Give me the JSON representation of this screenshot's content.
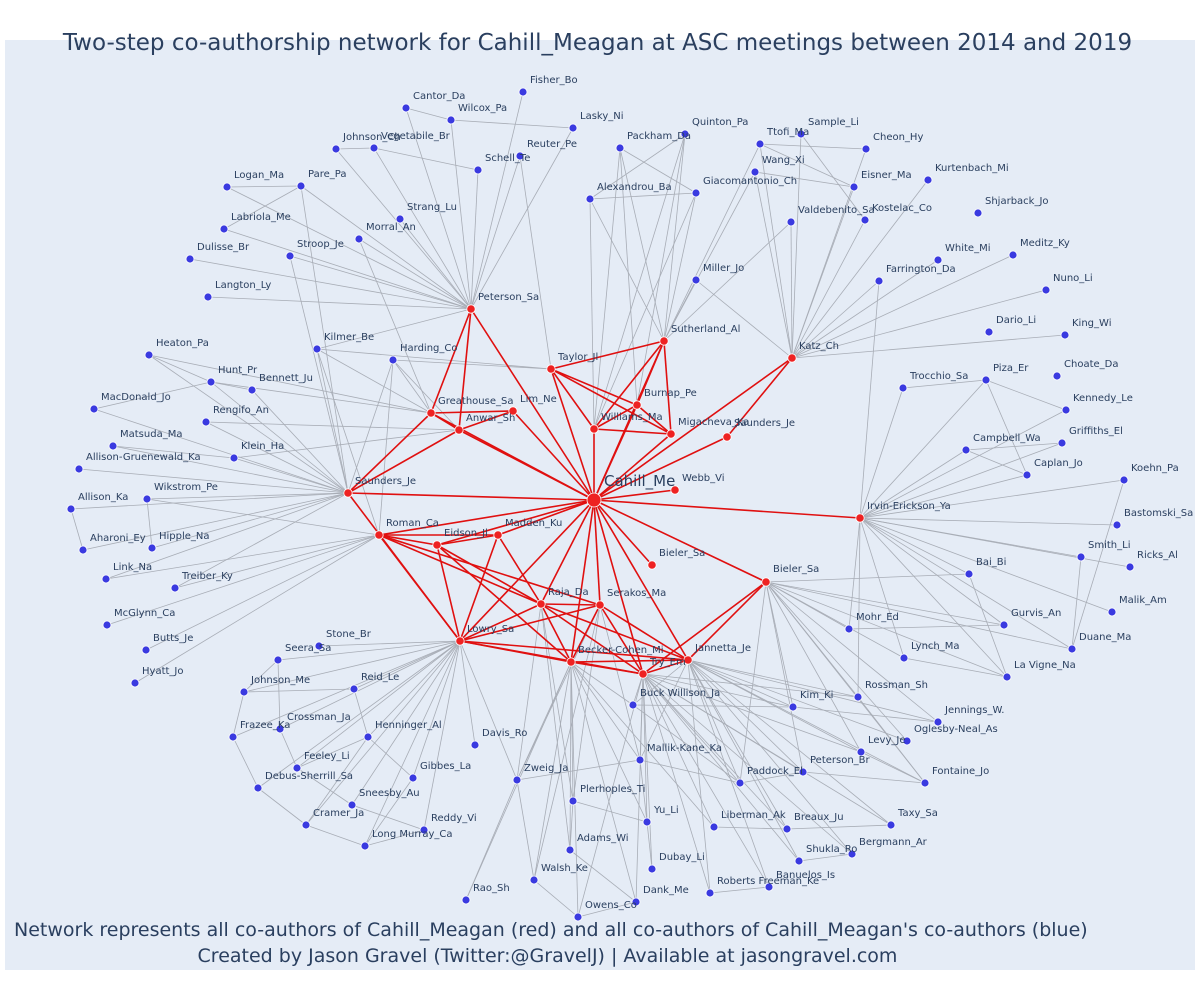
{
  "title": "Two-step co-authorship network for Cahill_Meagan at ASC meetings between 2014 and 2019",
  "caption_line1": "Network represents all co-authors of Cahill_Meagan (red) and all co-authors of Cahill_Meagan's co-authors (blue)",
  "caption_line2": "Created by Jason Gravel (Twitter:@GravelJ) | Available at jasongravel.com",
  "colors": {
    "background": "#e5ecf6",
    "red_node": "#ee2222",
    "blue_node": "#3a3ae0",
    "red_edge": "#e01010",
    "gray_edge": "#a8adb6",
    "text": "#2a3f5f"
  },
  "center": "Cahill_Me",
  "red_nodes": [
    "Peterson_Sa",
    "Sutherland_Al",
    "Katz_Ch",
    "Taylor_Jl",
    "Burnap_Pe",
    "Lim_Ne",
    "Greathouse_Sa",
    "Anwar_Sh",
    "Williams_Ma",
    "Migacheva_Ka",
    "Saunders_Je (2)",
    "Webb_Vi",
    "Saunders_Je",
    "Irvin-Erickson_Ya",
    "Roman_Ca",
    "Eidson_Jl",
    "Madden_Ku",
    "Bieler_Sa",
    "Bieler_Sa (2)",
    "Raja_Da",
    "Serakos_Ma",
    "Lowry_Sa",
    "Becker-Cohen_Mi",
    "Try_Em",
    "Jannetta_Je"
  ],
  "blue_nodes": [
    "Fisher_Bo",
    "Cantor_Da",
    "Wilcox_Pa",
    "Lasky_Ni",
    "Johnson_Ch",
    "Vegetabile_Br",
    "Reuter_Pe",
    "Schell_Te",
    "Logan_Ma",
    "Pare_Pa",
    "Labriola_Me",
    "Dulisse_Br",
    "Strang_Lu",
    "Morral_An",
    "Stroop_Je",
    "Langton_Ly",
    "Quinton_Pa",
    "Packham_Da",
    "Ttofi_Ma",
    "Sample_Li",
    "Cheon_Hy",
    "Wang_Xi",
    "Alexandrou_Ba",
    "Giacomantonio_Ch",
    "Eisner_Ma",
    "Kurtenbach_Mi",
    "Valdebenito_Sa",
    "Kostelac_Co",
    "Shjarback_Jo",
    "White_Mi",
    "Meditz_Ky",
    "Miller_Jo",
    "Farrington_Da",
    "Nuno_Li",
    "Dario_Li",
    "King_Wi",
    "Choate_Da",
    "Heaton_Pa",
    "Kilmer_Be",
    "Harding_Co",
    "Hunt_Pr",
    "Bennett_Ju",
    "MacDonald_Jo",
    "Rengifo_An",
    "Matsuda_Ma",
    "Klein_Ha",
    "Allison-Gruenewald_Ka",
    "Wikstrom_Pe",
    "Allison_Ka",
    "Hipple_Na",
    "Aharoni_Ey",
    "Link_Na",
    "Treiber_Ky",
    "McGlynn_Ca",
    "Butts_Je",
    "Hyatt_Jo",
    "Trocchio_Sa",
    "Piza_Er",
    "Kennedy_Le",
    "Campbell_Wa",
    "Griffiths_El",
    "Caplan_Jo",
    "Koehn_Pa",
    "Bastomski_Sa",
    "Smith_Li",
    "Ricks_Al",
    "Bai_Bi",
    "Gurvis_An",
    "Malik_Am",
    "Mohr_Ed",
    "Duane_Ma",
    "Lynch_Ma",
    "La Vigne_Na",
    "Rossman_Sh",
    "Kim_Ki",
    "Jennings_W.",
    "Oglesby-Neal_As",
    "Levy_Je",
    "Fontaine_Jo",
    "Stone_Br",
    "Seera_Sa",
    "Johnson_Me",
    "Reid_Le",
    "Crossman_Ja",
    "Frazee_Ka",
    "Henninger_Al",
    "Davis_Ro",
    "Feeley_Li",
    "Debus-Sherrill_Sa",
    "Gibbes_La",
    "Sneesby_Au",
    "Cramer_Ja",
    "Reddy_Vi",
    "Long Murray_Ca",
    "Buck Willison_Ja",
    "Mallik-Kane_Ka",
    "Zweig_Ja",
    "Plerhoples_Ti",
    "Paddock_El",
    "Peterson_Br",
    "Yu_Li",
    "Liberman_Ak",
    "Breaux_Ju",
    "Adams_Wi",
    "Dubay_Li",
    "Shukla_Ro",
    "Bergmann_Ar",
    "Taxy_Sa",
    "Walsh_Ke",
    "Banuelos_Is",
    "Roberts Freeman_Ke",
    "Dank_Me",
    "Rao_Sh",
    "Owens_Co"
  ]
}
